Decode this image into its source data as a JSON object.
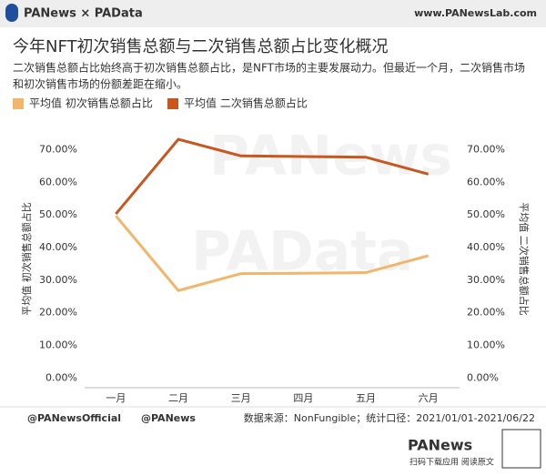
{
  "header": {
    "brand": "PANews × PAData",
    "site": "www.PANewsLab.com"
  },
  "chart_data": {
    "type": "line",
    "title": "今年NFT初次销售总额与二次销售总额占比变化概况",
    "subtitle": [
      "二次销售总额占比始终高于初次销售总额占比，是NFT市场的主要发展动力。但最近一个月，二次销售市场",
      "和初次销售市场的份额差距在缩小。"
    ],
    "watermarks": [
      "PANews",
      "PAData"
    ],
    "categories": [
      "一月",
      "二月",
      "三月",
      "四月",
      "五月",
      "六月"
    ],
    "series": [
      {
        "name": "平均值 初次销售总额占比",
        "color": "#F3B56A",
        "values": [
          49.7,
          26.8,
          32.0,
          32.1,
          32.3,
          37.5
        ]
      },
      {
        "name": "平均值 二次销售总额占比",
        "color": "#C9561E",
        "axis": "y2",
        "values": [
          50.3,
          73.2,
          68.1,
          67.9,
          67.7,
          62.5
        ]
      }
    ],
    "ylabel": "平均值 初次销售总额占比",
    "y2label": "平均值 二次销售总额占比",
    "ylim": [
      -3,
      76
    ],
    "y2lim": [
      -3,
      76
    ],
    "yticks": [
      {
        "value": 0,
        "label": "0.00%"
      },
      {
        "value": 10,
        "label": "10.00%"
      },
      {
        "value": 20,
        "label": "20.00%"
      },
      {
        "value": 30,
        "label": "30.00%"
      },
      {
        "value": 40,
        "label": "40.00%"
      },
      {
        "value": 50,
        "label": "50.00%"
      },
      {
        "value": 60,
        "label": "60.00%"
      },
      {
        "value": 70,
        "label": "70.00%"
      }
    ],
    "y2ticks": [
      {
        "value": 0,
        "label": "0.00%"
      },
      {
        "value": 10,
        "label": "10.00%"
      },
      {
        "value": 20,
        "label": "20.00%"
      },
      {
        "value": 30,
        "label": "30.00%"
      },
      {
        "value": 40,
        "label": "40.00%"
      },
      {
        "value": 50,
        "label": "50.00%"
      },
      {
        "value": 60,
        "label": "60.00%"
      },
      {
        "value": 70,
        "label": "70.00%"
      }
    ]
  },
  "footer": {
    "twitter": "@PANewsOfficial",
    "weibo": "@PANews",
    "source": "数据来源：NonFungible；统计口径：2021/01/01-2021/06/22",
    "qr_caption": "扫码下载应用 阅读原文",
    "logo": "PANews"
  }
}
